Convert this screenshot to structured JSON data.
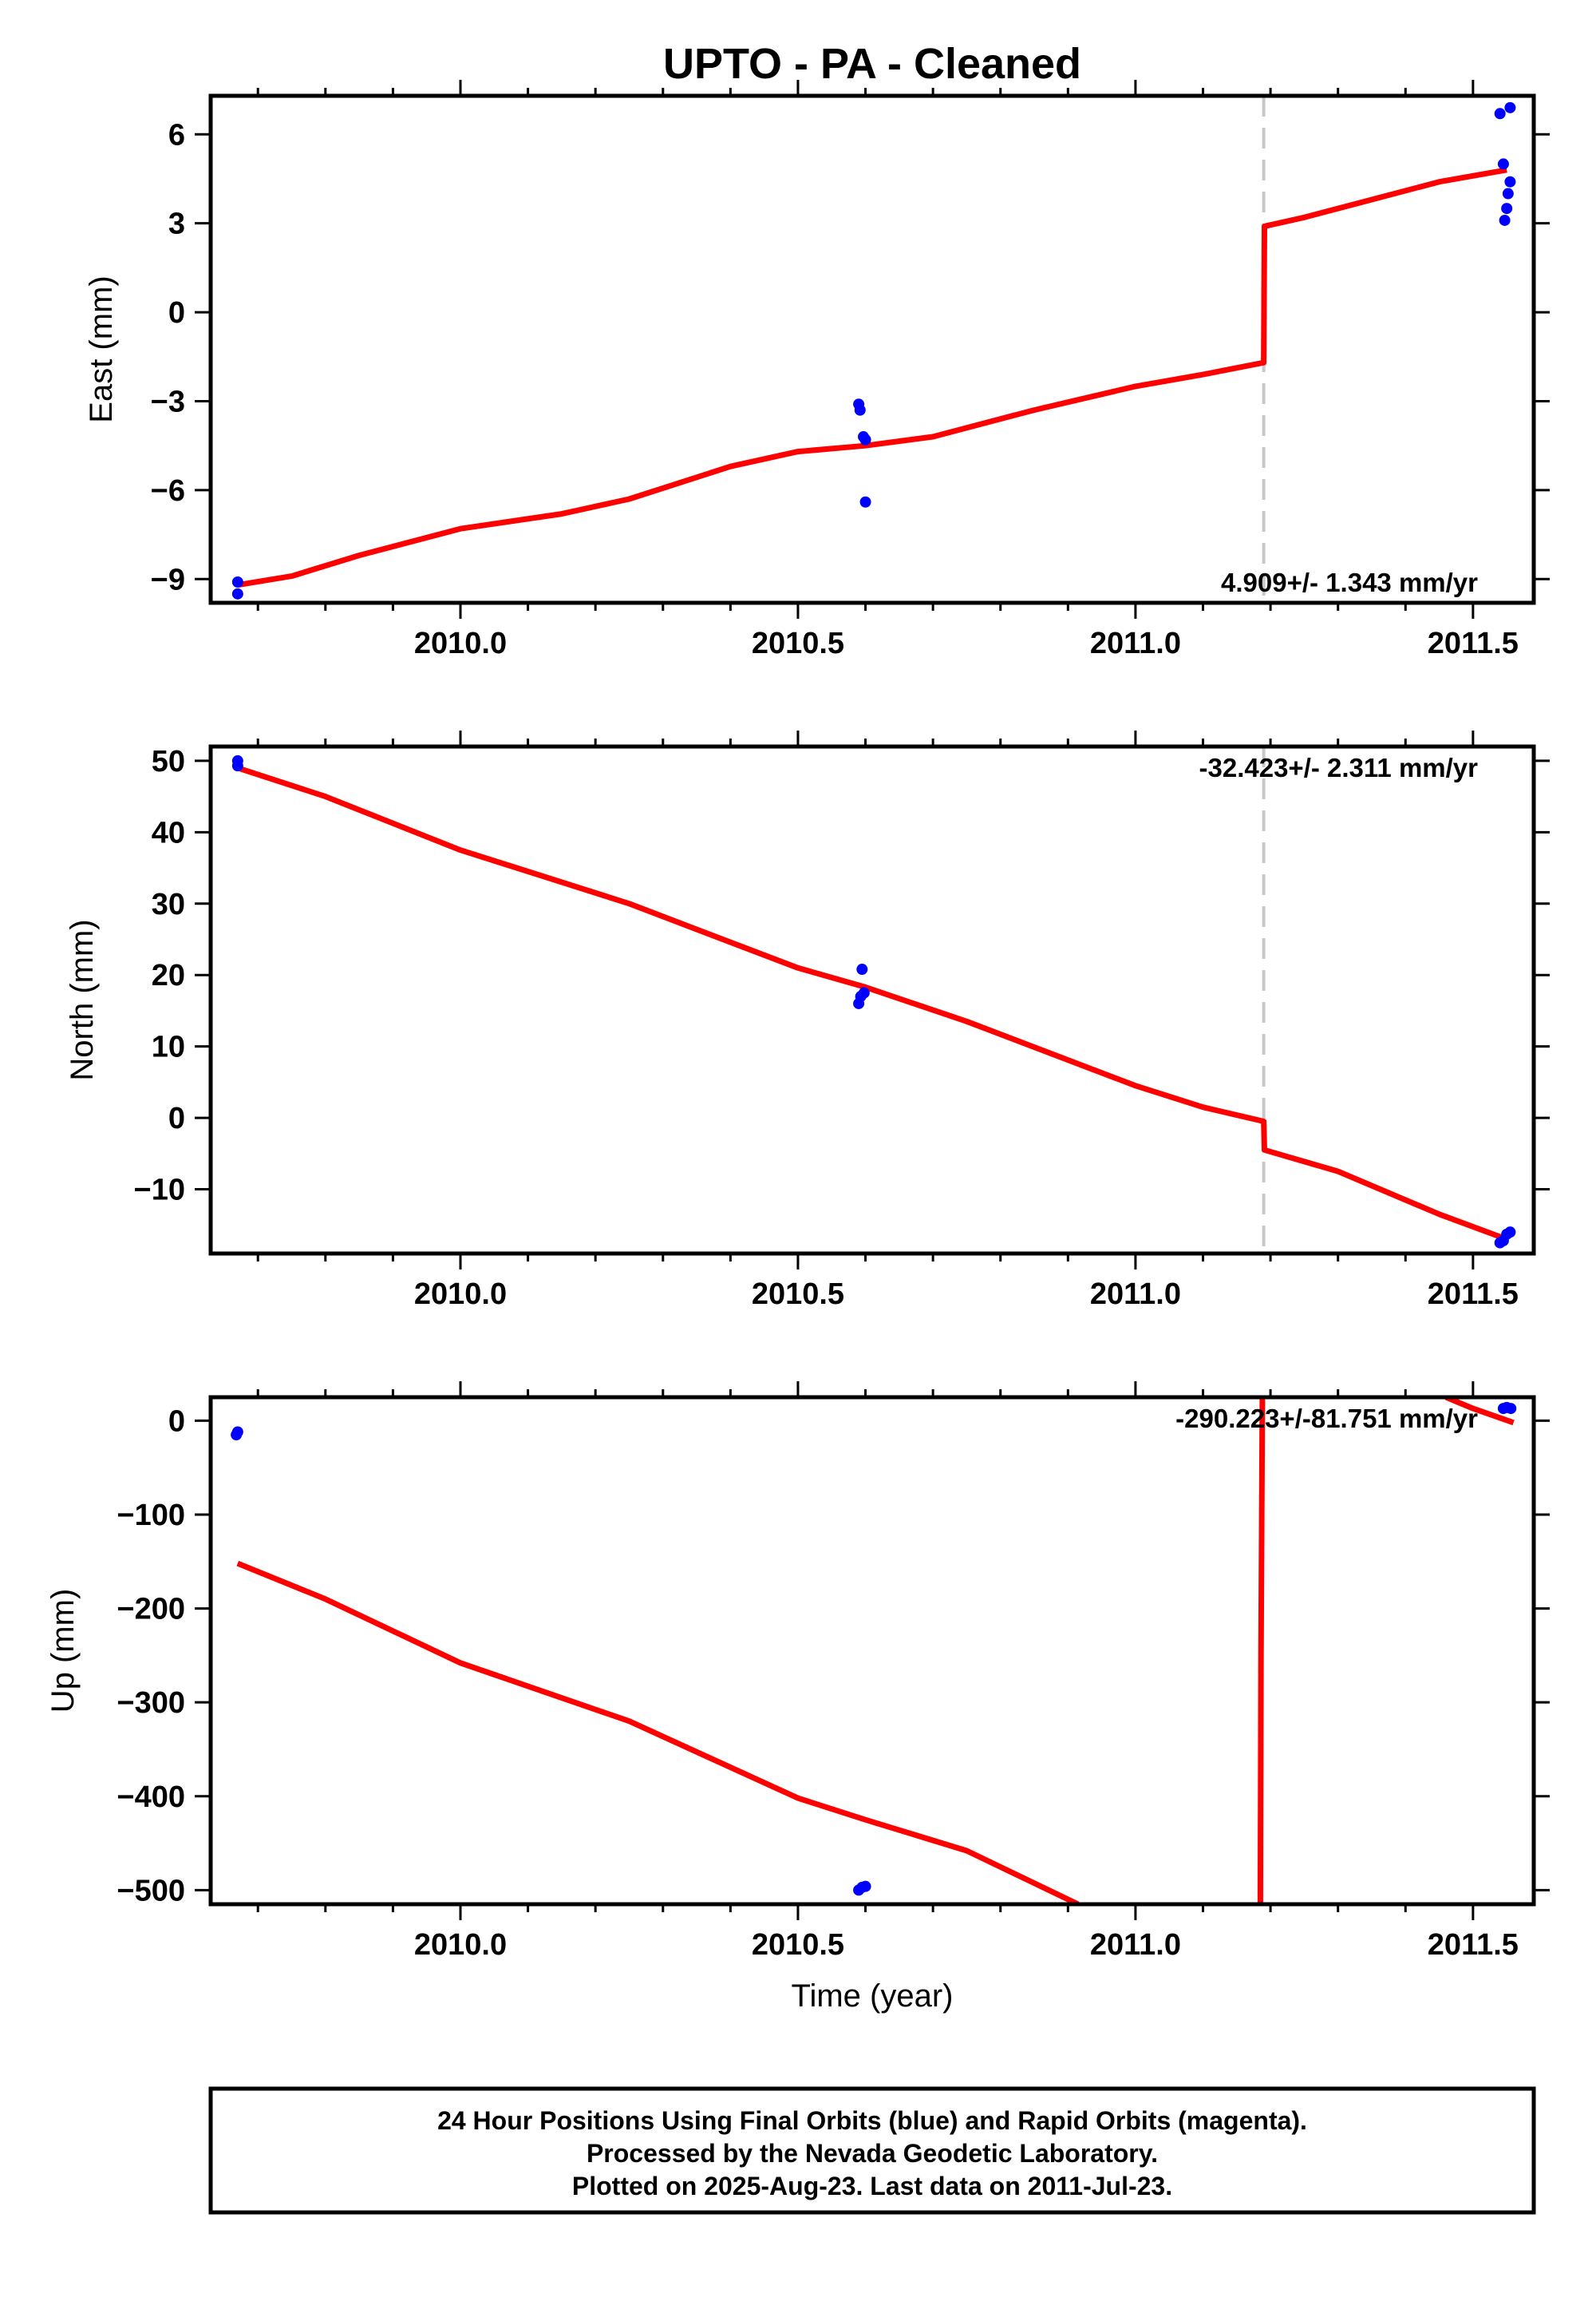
{
  "title": "UPTO  - PA - Cleaned",
  "xlabel": "Time (year)",
  "colors": {
    "data_points": "#0000ff",
    "model_line": "#ff0000",
    "event_line": "#c8c8c8"
  },
  "chart_data": [
    {
      "type": "scatter",
      "name": "east",
      "ylabel": "East (mm)",
      "xlim": [
        2009.63,
        2011.59
      ],
      "ylim": [
        -9.8,
        7.3
      ],
      "xticks": [
        2010.0,
        2010.5,
        2011.0,
        2011.5
      ],
      "xtick_labels": [
        "2010.0",
        "2010.5",
        "2011.0",
        "2011.5"
      ],
      "yticks": [
        6,
        3,
        0,
        -3,
        -6,
        -9
      ],
      "ytick_labels": [
        "6",
        "3",
        "0",
        "−3",
        "−6",
        "−9"
      ],
      "rate_label": "4.909+/- 1.343 mm/yr",
      "event_line_x": 2011.19,
      "grid": false,
      "points": [
        {
          "x": 2009.67,
          "y": -9.1
        },
        {
          "x": 2009.67,
          "y": -9.5
        },
        {
          "x": 2010.59,
          "y": -3.1
        },
        {
          "x": 2010.592,
          "y": -3.3
        },
        {
          "x": 2010.597,
          "y": -4.2
        },
        {
          "x": 2010.6,
          "y": -4.3
        },
        {
          "x": 2010.6,
          "y": -6.4
        },
        {
          "x": 2011.54,
          "y": 6.7
        },
        {
          "x": 2011.555,
          "y": 6.9
        },
        {
          "x": 2011.545,
          "y": 5.0
        },
        {
          "x": 2011.555,
          "y": 4.4
        },
        {
          "x": 2011.552,
          "y": 4.0
        },
        {
          "x": 2011.55,
          "y": 3.5
        },
        {
          "x": 2011.547,
          "y": 3.1
        }
      ],
      "model": [
        {
          "x": 2009.67,
          "y": -9.2
        },
        {
          "x": 2009.75,
          "y": -8.9
        },
        {
          "x": 2009.85,
          "y": -8.2
        },
        {
          "x": 2010.0,
          "y": -7.3
        },
        {
          "x": 2010.15,
          "y": -6.8
        },
        {
          "x": 2010.25,
          "y": -6.3
        },
        {
          "x": 2010.4,
          "y": -5.2
        },
        {
          "x": 2010.5,
          "y": -4.7
        },
        {
          "x": 2010.6,
          "y": -4.5
        },
        {
          "x": 2010.7,
          "y": -4.2
        },
        {
          "x": 2010.85,
          "y": -3.3
        },
        {
          "x": 2011.0,
          "y": -2.5
        },
        {
          "x": 2011.1,
          "y": -2.1
        },
        {
          "x": 2011.19,
          "y": -1.7
        },
        {
          "x": 2011.191,
          "y": 2.9
        },
        {
          "x": 2011.25,
          "y": 3.2
        },
        {
          "x": 2011.35,
          "y": 3.8
        },
        {
          "x": 2011.45,
          "y": 4.4
        },
        {
          "x": 2011.55,
          "y": 4.8
        }
      ]
    },
    {
      "type": "scatter",
      "name": "north",
      "ylabel": "North (mm)",
      "xlim": [
        2009.63,
        2011.59
      ],
      "ylim": [
        -19,
        52
      ],
      "xticks": [
        2010.0,
        2010.5,
        2011.0,
        2011.5
      ],
      "xtick_labels": [
        "2010.0",
        "2010.5",
        "2011.0",
        "2011.5"
      ],
      "yticks": [
        50,
        40,
        30,
        20,
        10,
        0,
        -10
      ],
      "ytick_labels": [
        "50",
        "40",
        "30",
        "20",
        "10",
        "0",
        "−10"
      ],
      "rate_label": "-32.423+/- 2.311 mm/yr",
      "event_line_x": 2011.19,
      "grid": false,
      "points": [
        {
          "x": 2009.67,
          "y": 50.0
        },
        {
          "x": 2009.67,
          "y": 49.3
        },
        {
          "x": 2010.59,
          "y": 16.0
        },
        {
          "x": 2010.593,
          "y": 17.0
        },
        {
          "x": 2010.598,
          "y": 17.5
        },
        {
          "x": 2010.595,
          "y": 20.8
        },
        {
          "x": 2011.54,
          "y": -17.5
        },
        {
          "x": 2011.545,
          "y": -17.2
        },
        {
          "x": 2011.55,
          "y": -16.3
        },
        {
          "x": 2011.555,
          "y": -16.0
        }
      ],
      "model": [
        {
          "x": 2009.67,
          "y": 49.0
        },
        {
          "x": 2009.8,
          "y": 45.0
        },
        {
          "x": 2010.0,
          "y": 37.5
        },
        {
          "x": 2010.25,
          "y": 30.0
        },
        {
          "x": 2010.5,
          "y": 21.0
        },
        {
          "x": 2010.6,
          "y": 18.3
        },
        {
          "x": 2010.75,
          "y": 13.5
        },
        {
          "x": 2011.0,
          "y": 4.5
        },
        {
          "x": 2011.1,
          "y": 1.5
        },
        {
          "x": 2011.19,
          "y": -0.5
        },
        {
          "x": 2011.191,
          "y": -4.5
        },
        {
          "x": 2011.3,
          "y": -7.5
        },
        {
          "x": 2011.45,
          "y": -13.5
        },
        {
          "x": 2011.55,
          "y": -17.0
        }
      ]
    },
    {
      "type": "scatter",
      "name": "up",
      "ylabel": "Up (mm)",
      "xlim": [
        2009.63,
        2011.59
      ],
      "ylim": [
        -515,
        25
      ],
      "xticks": [
        2010.0,
        2010.5,
        2011.0,
        2011.5
      ],
      "xtick_labels": [
        "2010.0",
        "2010.5",
        "2011.0",
        "2011.5"
      ],
      "yticks": [
        0,
        -100,
        -200,
        -300,
        -400,
        -500
      ],
      "ytick_labels": [
        "0",
        "−100",
        "−200",
        "−300",
        "−400",
        "−500"
      ],
      "rate_label": "-290.223+/-81.751 mm/yr",
      "grid": false,
      "points": [
        {
          "x": 2009.67,
          "y": -12
        },
        {
          "x": 2009.668,
          "y": -15
        },
        {
          "x": 2010.59,
          "y": -500
        },
        {
          "x": 2010.595,
          "y": -497
        },
        {
          "x": 2010.6,
          "y": -496
        },
        {
          "x": 2011.545,
          "y": 13
        },
        {
          "x": 2011.55,
          "y": 14
        },
        {
          "x": 2011.556,
          "y": 13
        }
      ],
      "model": [
        {
          "x": 2009.67,
          "y": -152
        },
        {
          "x": 2009.8,
          "y": -190
        },
        {
          "x": 2010.0,
          "y": -258
        },
        {
          "x": 2010.25,
          "y": -320
        },
        {
          "x": 2010.5,
          "y": -402
        },
        {
          "x": 2010.6,
          "y": -425
        },
        {
          "x": 2010.75,
          "y": -458
        },
        {
          "x": 2010.915,
          "y": -515
        }
      ],
      "model_extra": [
        {
          "x": 2011.185,
          "y": -515
        },
        {
          "x": 2011.186,
          "y": -250
        },
        {
          "x": 2011.188,
          "y": 25
        }
      ],
      "model_extra2": [
        {
          "x": 2011.46,
          "y": 25
        },
        {
          "x": 2011.5,
          "y": 13
        },
        {
          "x": 2011.56,
          "y": -2
        }
      ]
    }
  ],
  "footer": {
    "line1": "24 Hour Positions Using Final Orbits (blue) and Rapid Orbits (magenta).",
    "line2": "Processed by the Nevada Geodetic Laboratory.",
    "line3": "Plotted on 2025-Aug-23. Last data on 2011-Jul-23."
  }
}
